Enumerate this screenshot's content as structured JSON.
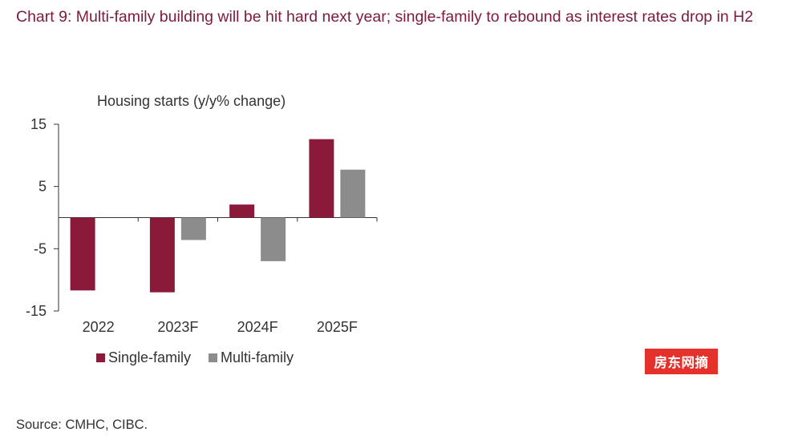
{
  "title": "Chart 9: Multi-family building will be hit hard next year; single-family to rebound as interest rates drop in H2",
  "source": "Source: CMHC, CIBC.",
  "watermark": "房东网摘",
  "colors": {
    "title": "#7d1a3d",
    "single_family": "#8b1a3a",
    "multi_family": "#8c8c8c",
    "axis": "#333333",
    "watermark_bg": "#e5312c"
  },
  "legend": {
    "items": [
      {
        "label": "Single-family",
        "color": "#8b1a3a"
      },
      {
        "label": "Multi-family",
        "color": "#8c8c8c"
      }
    ]
  },
  "chart_data": {
    "type": "bar",
    "title": "Housing starts (y/y% change)",
    "xlabel": "",
    "ylabel": "",
    "categories": [
      "2022",
      "2023F",
      "2024F",
      "2025F"
    ],
    "series": [
      {
        "name": "Single-family",
        "values": [
          -11.7,
          -12.0,
          2.1,
          12.6
        ]
      },
      {
        "name": "Multi-family",
        "values": [
          0.0,
          -3.6,
          -7.0,
          7.7
        ]
      }
    ],
    "ylim": [
      -15,
      15
    ],
    "yticks": [
      15,
      5,
      -5,
      -15
    ],
    "ytick_labels": [
      "15",
      "5",
      "-5",
      "-15"
    ],
    "grid": false,
    "legend_position": "bottom-left"
  }
}
